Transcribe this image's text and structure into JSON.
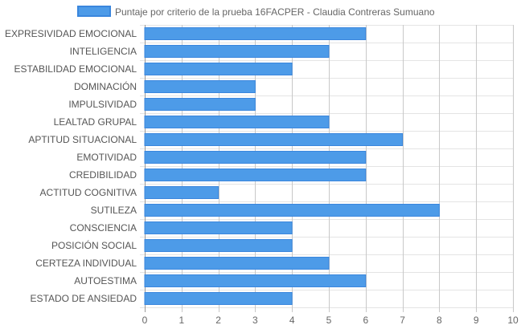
{
  "chart_data": {
    "type": "bar",
    "orientation": "horizontal",
    "series": [
      {
        "name": "Puntaje por criterio de la prueba 16FACPER - Claudia Contreras Sumuano",
        "color": "#4d9be8",
        "border_color": "#3a86dd",
        "values": [
          6,
          5,
          4,
          3,
          3,
          5,
          7,
          6,
          6,
          2,
          8,
          4,
          4,
          5,
          6,
          4
        ]
      }
    ],
    "categories": [
      "EXPRESIVIDAD EMOCIONAL",
      "INTELIGENCIA",
      "ESTABILIDAD EMOCIONAL",
      "DOMINACIÓN",
      "IMPULSIVIDAD",
      "LEALTAD GRUPAL",
      "APTITUD SITUACIONAL",
      "EMOTIVIDAD",
      "CREDIBILIDAD",
      "ACTITUD COGNITIVA",
      "SUTILEZA",
      "CONSCIENCIA",
      "POSICIÓN SOCIAL",
      "CERTEZA INDIVIDUAL",
      "AUTOESTIMA",
      "ESTADO DE ANSIEDAD"
    ],
    "x_ticks": [
      "0",
      "1",
      "2",
      "3",
      "4",
      "5",
      "6",
      "7",
      "8",
      "9",
      "10"
    ],
    "xlim": [
      0,
      10
    ],
    "grid": true,
    "legend_position": "top"
  }
}
